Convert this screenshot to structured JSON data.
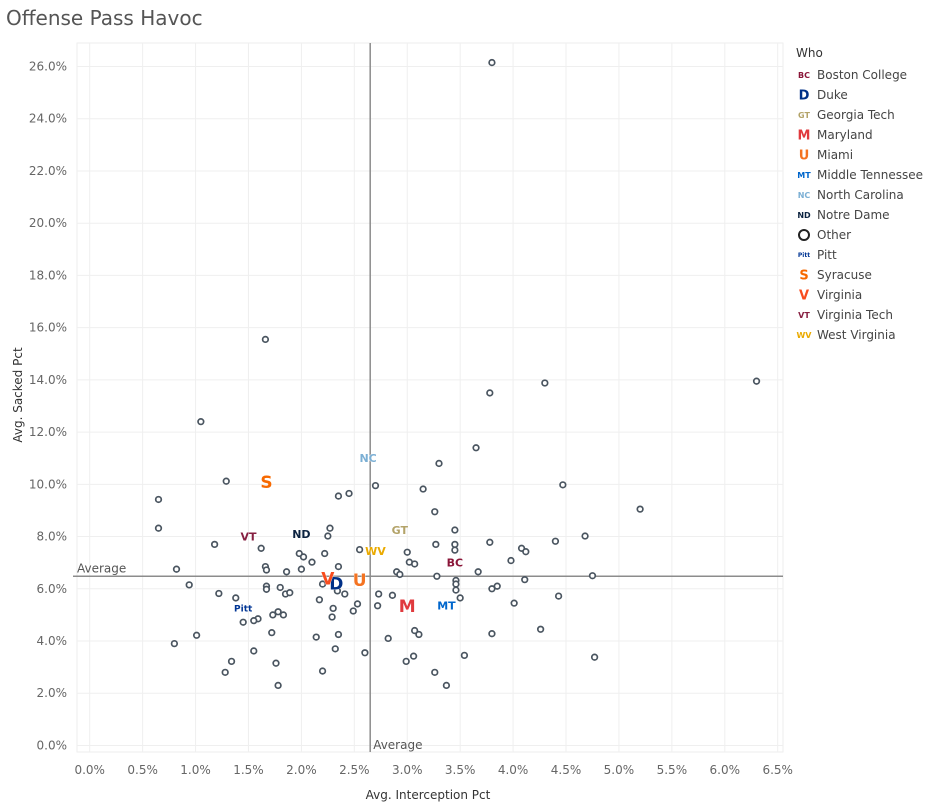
{
  "title": "Offense Pass Havoc",
  "chart_data": {
    "type": "scatter",
    "title": "Offense Pass Havoc",
    "xlabel": "Avg. Interception Pct",
    "ylabel": "Avg. Sacked Pct",
    "xlim": [
      -0.0012,
      0.0655
    ],
    "ylim": [
      -0.0025,
      0.269
    ],
    "x_ticks": [
      "0.0%",
      "0.5%",
      "1.0%",
      "1.5%",
      "2.0%",
      "2.5%",
      "3.0%",
      "3.5%",
      "4.0%",
      "4.5%",
      "5.0%",
      "5.5%",
      "6.0%",
      "6.5%"
    ],
    "x_tick_values": [
      0,
      0.005,
      0.01,
      0.015,
      0.02,
      0.025,
      0.03,
      0.035,
      0.04,
      0.045,
      0.05,
      0.055,
      0.06,
      0.065
    ],
    "y_ticks": [
      "0.0%",
      "2.0%",
      "4.0%",
      "6.0%",
      "8.0%",
      "10.0%",
      "12.0%",
      "14.0%",
      "16.0%",
      "18.0%",
      "20.0%",
      "22.0%",
      "24.0%",
      "26.0%"
    ],
    "y_tick_values": [
      0,
      0.02,
      0.04,
      0.06,
      0.08,
      0.1,
      0.12,
      0.14,
      0.16,
      0.18,
      0.2,
      0.22,
      0.24,
      0.26
    ],
    "grid": true,
    "legend_title": "Who",
    "legend_position": "right",
    "reference_lines": [
      {
        "axis": "x",
        "value": 0.0265,
        "label": "Average"
      },
      {
        "axis": "y",
        "value": 0.0648,
        "label": "Average"
      }
    ],
    "highlighted": [
      {
        "name": "Boston College",
        "x": 0.0345,
        "y": 0.07,
        "color": "#8a1538",
        "glyph": "BC"
      },
      {
        "name": "Duke",
        "x": 0.0233,
        "y": 0.062,
        "color": "#003087",
        "glyph": "D"
      },
      {
        "name": "Georgia Tech",
        "x": 0.0293,
        "y": 0.0825,
        "color": "#b3a369",
        "glyph": "GT"
      },
      {
        "name": "Maryland",
        "x": 0.03,
        "y": 0.0535,
        "color": "#e03a3e",
        "glyph": "M"
      },
      {
        "name": "Miami",
        "x": 0.0255,
        "y": 0.0635,
        "color": "#f47321",
        "glyph": "U"
      },
      {
        "name": "Middle Tennessee",
        "x": 0.0337,
        "y": 0.0535,
        "color": "#0066cc",
        "glyph": "MT"
      },
      {
        "name": "North Carolina",
        "x": 0.0263,
        "y": 0.11,
        "color": "#7bafd4",
        "glyph": "NC"
      },
      {
        "name": "Notre Dame",
        "x": 0.02,
        "y": 0.081,
        "color": "#0c2340",
        "glyph": "ND"
      },
      {
        "name": "Pitt",
        "x": 0.0145,
        "y": 0.0525,
        "color": "#003594",
        "glyph": "Pitt"
      },
      {
        "name": "Syracuse",
        "x": 0.0167,
        "y": 0.101,
        "color": "#f76900",
        "glyph": "S"
      },
      {
        "name": "Virginia",
        "x": 0.0225,
        "y": 0.064,
        "color": "#f84c1e",
        "glyph": "V"
      },
      {
        "name": "Virginia Tech",
        "x": 0.015,
        "y": 0.08,
        "color": "#861f41",
        "glyph": "VT"
      },
      {
        "name": "West Virginia",
        "x": 0.027,
        "y": 0.0745,
        "color": "#eaaa00",
        "glyph": "WV"
      }
    ],
    "other_points": [
      [
        0.038,
        0.2615
      ],
      [
        0.0166,
        0.1555
      ],
      [
        0.063,
        0.1395
      ],
      [
        0.043,
        0.1388
      ],
      [
        0.0378,
        0.135
      ],
      [
        0.0105,
        0.124
      ],
      [
        0.0365,
        0.114
      ],
      [
        0.033,
        0.108
      ],
      [
        0.0129,
        0.1012
      ],
      [
        0.027,
        0.0995
      ],
      [
        0.0447,
        0.0998
      ],
      [
        0.0315,
        0.0982
      ],
      [
        0.0245,
        0.0965
      ],
      [
        0.0235,
        0.0955
      ],
      [
        0.0065,
        0.0942
      ],
      [
        0.052,
        0.0905
      ],
      [
        0.0326,
        0.0895
      ],
      [
        0.0065,
        0.0832
      ],
      [
        0.0227,
        0.0832
      ],
      [
        0.0345,
        0.0825
      ],
      [
        0.0468,
        0.0802
      ],
      [
        0.0225,
        0.0802
      ],
      [
        0.044,
        0.0782
      ],
      [
        0.0378,
        0.0778
      ],
      [
        0.0118,
        0.077
      ],
      [
        0.0327,
        0.077
      ],
      [
        0.0345,
        0.077
      ],
      [
        0.0162,
        0.0755
      ],
      [
        0.0345,
        0.0748
      ],
      [
        0.0408,
        0.0755
      ],
      [
        0.0412,
        0.0742
      ],
      [
        0.03,
        0.074
      ],
      [
        0.0255,
        0.075
      ],
      [
        0.0198,
        0.0735
      ],
      [
        0.0222,
        0.0735
      ],
      [
        0.0202,
        0.0722
      ],
      [
        0.0398,
        0.0708
      ],
      [
        0.021,
        0.0702
      ],
      [
        0.0302,
        0.0702
      ],
      [
        0.0307,
        0.0695
      ],
      [
        0.0166,
        0.0685
      ],
      [
        0.0235,
        0.0685
      ],
      [
        0.02,
        0.0675
      ],
      [
        0.0082,
        0.0675
      ],
      [
        0.029,
        0.0665
      ],
      [
        0.0367,
        0.0665
      ],
      [
        0.0186,
        0.0665
      ],
      [
        0.0167,
        0.0672
      ],
      [
        0.0293,
        0.0655
      ],
      [
        0.0475,
        0.065
      ],
      [
        0.0328,
        0.0648
      ],
      [
        0.0411,
        0.0635
      ],
      [
        0.0346,
        0.0632
      ],
      [
        0.0346,
        0.0618
      ],
      [
        0.022,
        0.0618
      ],
      [
        0.0094,
        0.0615
      ],
      [
        0.0385,
        0.061
      ],
      [
        0.0167,
        0.061
      ],
      [
        0.018,
        0.0605
      ],
      [
        0.0167,
        0.0598
      ],
      [
        0.038,
        0.06
      ],
      [
        0.0234,
        0.0592
      ],
      [
        0.0346,
        0.0595
      ],
      [
        0.0185,
        0.058
      ],
      [
        0.0241,
        0.058
      ],
      [
        0.0189,
        0.0585
      ],
      [
        0.0122,
        0.0582
      ],
      [
        0.0273,
        0.058
      ],
      [
        0.0286,
        0.0575
      ],
      [
        0.035,
        0.0565
      ],
      [
        0.0217,
        0.0558
      ],
      [
        0.0443,
        0.0572
      ],
      [
        0.0138,
        0.0565
      ],
      [
        0.0401,
        0.0545
      ],
      [
        0.0253,
        0.0542
      ],
      [
        0.0272,
        0.0535
      ],
      [
        0.023,
        0.0525
      ],
      [
        0.0249,
        0.0515
      ],
      [
        0.0178,
        0.0512
      ],
      [
        0.0183,
        0.05
      ],
      [
        0.0173,
        0.05
      ],
      [
        0.0229,
        0.0492
      ],
      [
        0.0159,
        0.0485
      ],
      [
        0.0155,
        0.0478
      ],
      [
        0.0145,
        0.0472
      ],
      [
        0.0426,
        0.0445
      ],
      [
        0.0307,
        0.044
      ],
      [
        0.0311,
        0.0425
      ],
      [
        0.038,
        0.0428
      ],
      [
        0.0172,
        0.0432
      ],
      [
        0.0235,
        0.0425
      ],
      [
        0.0101,
        0.0422
      ],
      [
        0.0214,
        0.0415
      ],
      [
        0.0282,
        0.041
      ],
      [
        0.008,
        0.039
      ],
      [
        0.0232,
        0.037
      ],
      [
        0.0155,
        0.0362
      ],
      [
        0.026,
        0.0355
      ],
      [
        0.0354,
        0.0345
      ],
      [
        0.0306,
        0.0342
      ],
      [
        0.0477,
        0.0338
      ],
      [
        0.0299,
        0.0322
      ],
      [
        0.0134,
        0.0322
      ],
      [
        0.0176,
        0.0315
      ],
      [
        0.0128,
        0.028
      ],
      [
        0.0326,
        0.028
      ],
      [
        0.022,
        0.0285
      ],
      [
        0.0337,
        0.023
      ],
      [
        0.0178,
        0.023
      ]
    ]
  },
  "legend": {
    "title": "Who",
    "items": [
      {
        "label": "Boston College",
        "icon": "bc-logo-icon",
        "color": "#8a1538",
        "glyph": "BC"
      },
      {
        "label": "Duke",
        "icon": "duke-logo-icon",
        "color": "#003087",
        "glyph": "D"
      },
      {
        "label": "Georgia Tech",
        "icon": "gt-logo-icon",
        "color": "#b3a369",
        "glyph": "GT"
      },
      {
        "label": "Maryland",
        "icon": "maryland-logo-icon",
        "color": "#e03a3e",
        "glyph": "M"
      },
      {
        "label": "Miami",
        "icon": "miami-logo-icon",
        "color": "#f47321",
        "glyph": "U"
      },
      {
        "label": "Middle Tennessee",
        "icon": "mtsu-logo-icon",
        "color": "#0066cc",
        "glyph": "MT"
      },
      {
        "label": "North Carolina",
        "icon": "unc-logo-icon",
        "color": "#7bafd4",
        "glyph": "NC"
      },
      {
        "label": "Notre Dame",
        "icon": "notre-dame-logo-icon",
        "color": "#0c2340",
        "glyph": "ND"
      },
      {
        "label": "Other",
        "icon": "circle-icon",
        "color": "#222222",
        "glyph": ""
      },
      {
        "label": "Pitt",
        "icon": "pitt-logo-icon",
        "color": "#003594",
        "glyph": "Pitt"
      },
      {
        "label": "Syracuse",
        "icon": "syracuse-logo-icon",
        "color": "#f76900",
        "glyph": "S"
      },
      {
        "label": "Virginia",
        "icon": "virginia-logo-icon",
        "color": "#f84c1e",
        "glyph": "V"
      },
      {
        "label": "Virginia Tech",
        "icon": "vt-logo-icon",
        "color": "#861f41",
        "glyph": "VT"
      },
      {
        "label": "West Virginia",
        "icon": "wvu-logo-icon",
        "color": "#eaaa00",
        "glyph": "WV"
      }
    ]
  }
}
